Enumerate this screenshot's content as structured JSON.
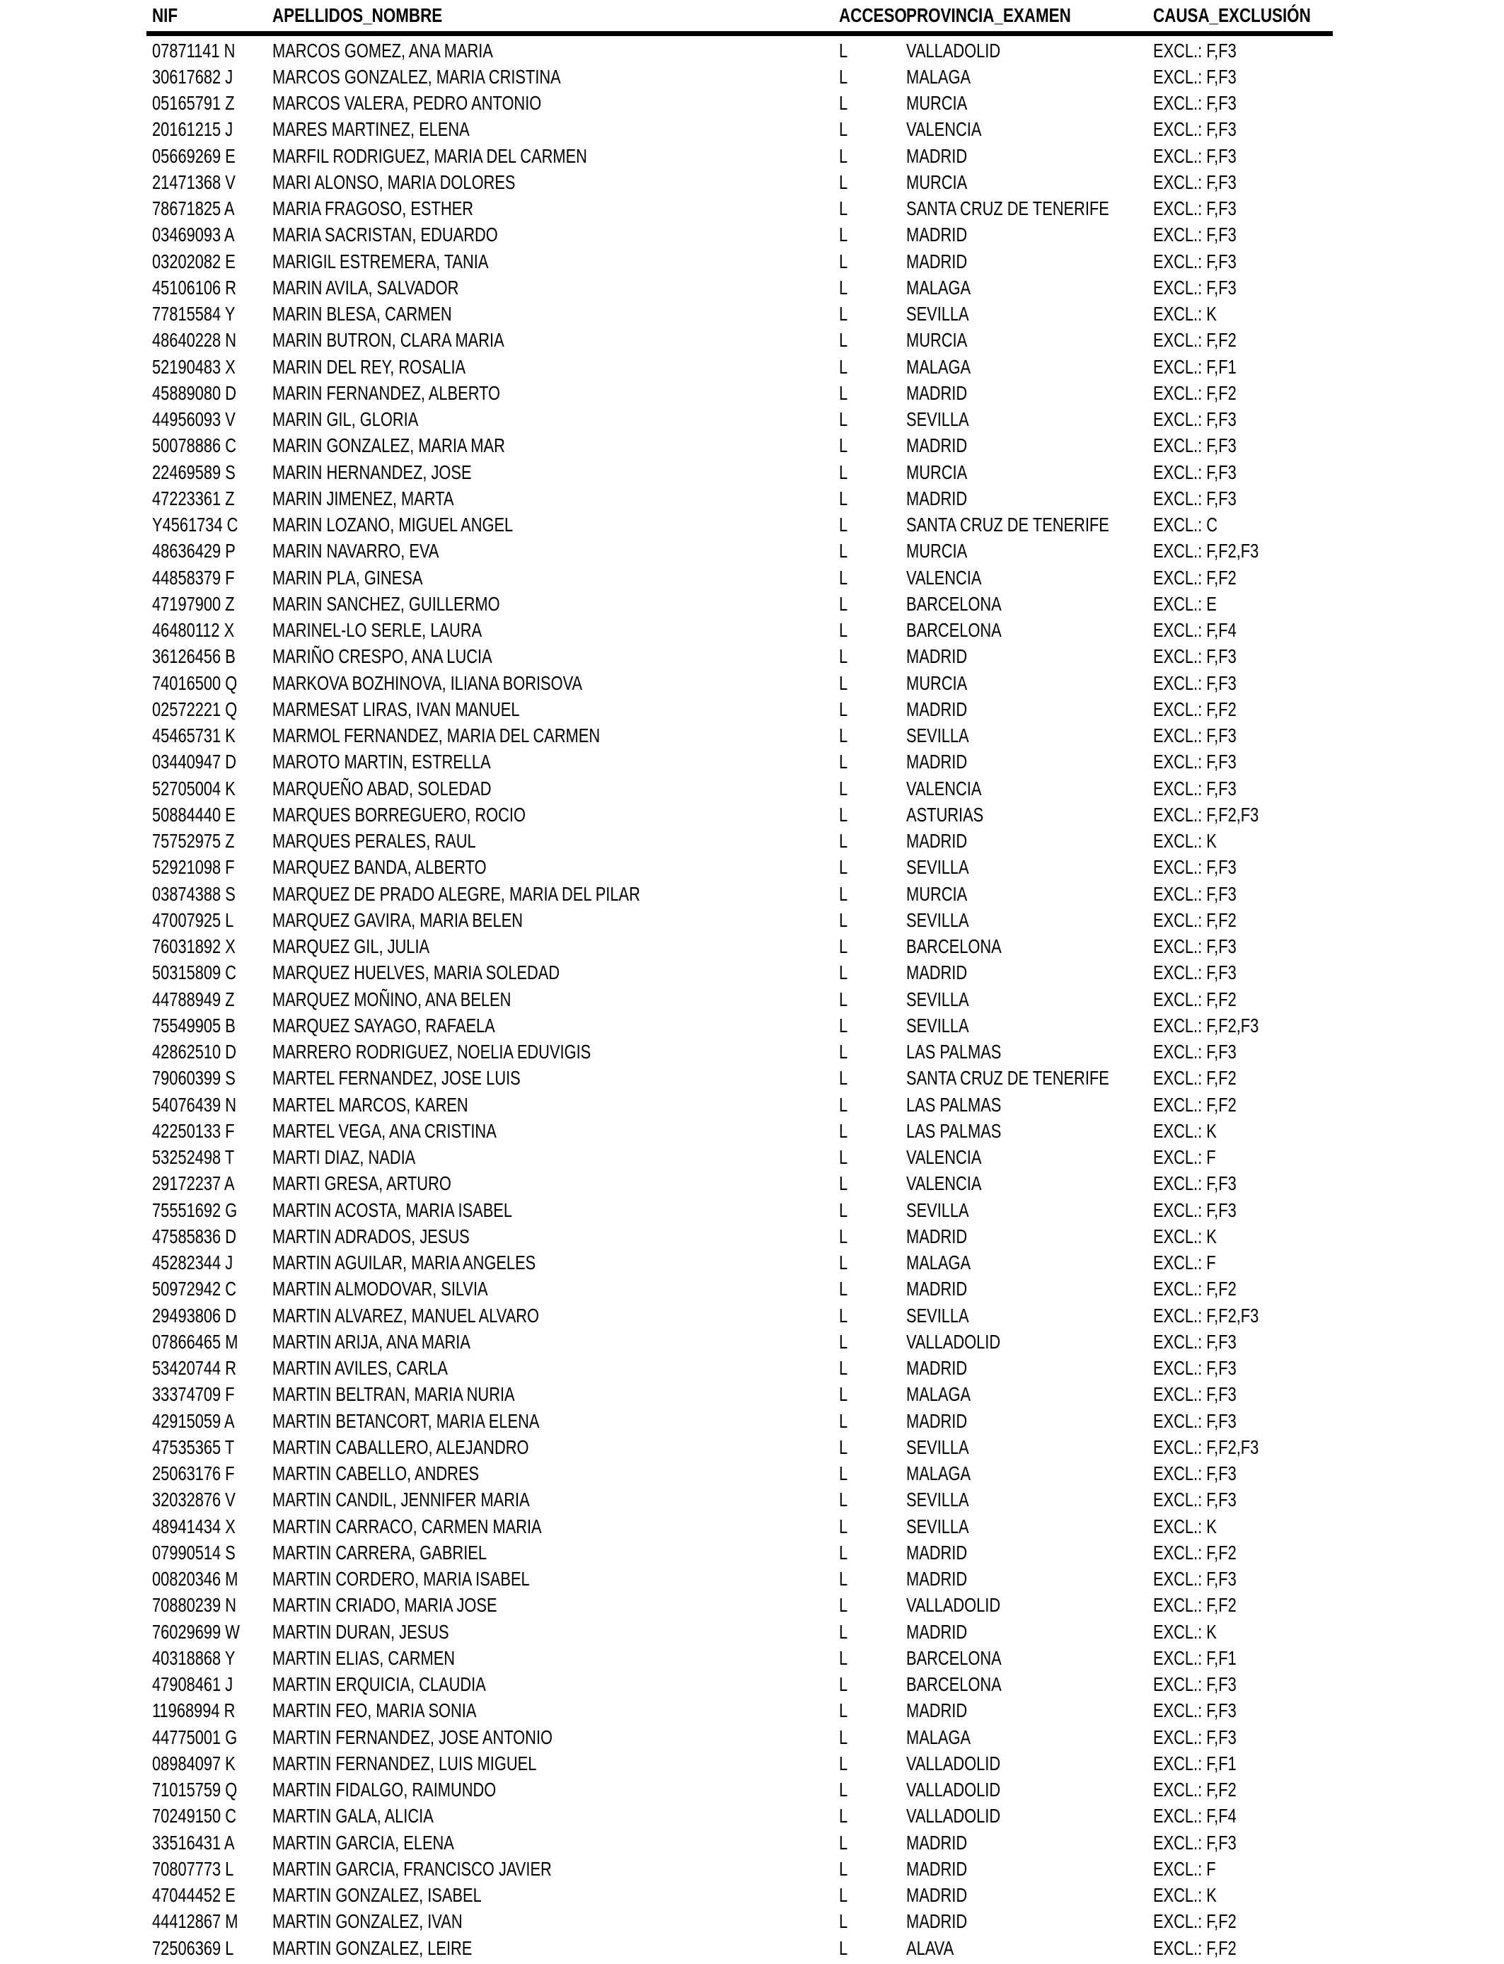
{
  "table": {
    "columns": [
      "NIF",
      "APELLIDOS_NOMBRE",
      "ACCESO",
      "PROVINCIA_EXAMEN",
      "CAUSA_EXCLUSIÓN"
    ],
    "rows": [
      {
        "nif": "07871141 N",
        "nombre": "MARCOS GOMEZ, ANA MARIA",
        "acceso": "L",
        "provincia": "VALLADOLID",
        "causa": "EXCL.: F,F3"
      },
      {
        "nif": "30617682 J",
        "nombre": "MARCOS GONZALEZ, MARIA CRISTINA",
        "acceso": "L",
        "provincia": "MALAGA",
        "causa": "EXCL.: F,F3"
      },
      {
        "nif": "05165791 Z",
        "nombre": "MARCOS VALERA, PEDRO ANTONIO",
        "acceso": "L",
        "provincia": "MURCIA",
        "causa": "EXCL.: F,F3"
      },
      {
        "nif": "20161215 J",
        "nombre": "MARES MARTINEZ, ELENA",
        "acceso": "L",
        "provincia": "VALENCIA",
        "causa": "EXCL.: F,F3"
      },
      {
        "nif": "05669269 E",
        "nombre": "MARFIL RODRIGUEZ, MARIA DEL CARMEN",
        "acceso": "L",
        "provincia": "MADRID",
        "causa": "EXCL.: F,F3"
      },
      {
        "nif": "21471368 V",
        "nombre": "MARI ALONSO, MARIA DOLORES",
        "acceso": "L",
        "provincia": "MURCIA",
        "causa": "EXCL.: F,F3"
      },
      {
        "nif": "78671825 A",
        "nombre": "MARIA FRAGOSO, ESTHER",
        "acceso": "L",
        "provincia": "SANTA CRUZ DE TENERIFE",
        "causa": "EXCL.: F,F3"
      },
      {
        "nif": "03469093 A",
        "nombre": "MARIA SACRISTAN, EDUARDO",
        "acceso": "L",
        "provincia": "MADRID",
        "causa": "EXCL.: F,F3"
      },
      {
        "nif": "03202082 E",
        "nombre": "MARIGIL ESTREMERA, TANIA",
        "acceso": "L",
        "provincia": "MADRID",
        "causa": "EXCL.: F,F3"
      },
      {
        "nif": "45106106 R",
        "nombre": "MARIN AVILA, SALVADOR",
        "acceso": "L",
        "provincia": "MALAGA",
        "causa": "EXCL.: F,F3"
      },
      {
        "nif": "77815584 Y",
        "nombre": "MARIN BLESA, CARMEN",
        "acceso": "L",
        "provincia": "SEVILLA",
        "causa": "EXCL.: K"
      },
      {
        "nif": "48640228 N",
        "nombre": "MARIN BUTRON, CLARA MARIA",
        "acceso": "L",
        "provincia": "MURCIA",
        "causa": "EXCL.: F,F2"
      },
      {
        "nif": "52190483 X",
        "nombre": "MARIN DEL REY, ROSALIA",
        "acceso": "L",
        "provincia": "MALAGA",
        "causa": "EXCL.: F,F1"
      },
      {
        "nif": "45889080 D",
        "nombre": "MARIN FERNANDEZ, ALBERTO",
        "acceso": "L",
        "provincia": "MADRID",
        "causa": "EXCL.: F,F2"
      },
      {
        "nif": "44956093 V",
        "nombre": "MARIN GIL, GLORIA",
        "acceso": "L",
        "provincia": "SEVILLA",
        "causa": "EXCL.: F,F3"
      },
      {
        "nif": "50078886 C",
        "nombre": "MARIN GONZALEZ, MARIA MAR",
        "acceso": "L",
        "provincia": "MADRID",
        "causa": "EXCL.: F,F3"
      },
      {
        "nif": "22469589 S",
        "nombre": "MARIN HERNANDEZ, JOSE",
        "acceso": "L",
        "provincia": "MURCIA",
        "causa": "EXCL.: F,F3"
      },
      {
        "nif": "47223361 Z",
        "nombre": "MARIN JIMENEZ, MARTA",
        "acceso": "L",
        "provincia": "MADRID",
        "causa": "EXCL.: F,F3"
      },
      {
        "nif": "Y4561734 C",
        "nombre": "MARIN LOZANO, MIGUEL ANGEL",
        "acceso": "L",
        "provincia": "SANTA CRUZ DE TENERIFE",
        "causa": "EXCL.: C"
      },
      {
        "nif": "48636429 P",
        "nombre": "MARIN NAVARRO, EVA",
        "acceso": "L",
        "provincia": "MURCIA",
        "causa": "EXCL.: F,F2,F3"
      },
      {
        "nif": "44858379 F",
        "nombre": "MARIN PLA, GINESA",
        "acceso": "L",
        "provincia": "VALENCIA",
        "causa": "EXCL.: F,F2"
      },
      {
        "nif": "47197900 Z",
        "nombre": "MARIN SANCHEZ, GUILLERMO",
        "acceso": "L",
        "provincia": "BARCELONA",
        "causa": "EXCL.: E"
      },
      {
        "nif": "46480112 X",
        "nombre": "MARINEL-LO SERLE, LAURA",
        "acceso": "L",
        "provincia": "BARCELONA",
        "causa": "EXCL.: F,F4"
      },
      {
        "nif": "36126456 B",
        "nombre": "MARIÑO CRESPO, ANA LUCIA",
        "acceso": "L",
        "provincia": "MADRID",
        "causa": "EXCL.: F,F3"
      },
      {
        "nif": "74016500 Q",
        "nombre": "MARKOVA BOZHINOVA, ILIANA BORISOVA",
        "acceso": "L",
        "provincia": "MURCIA",
        "causa": "EXCL.: F,F3"
      },
      {
        "nif": "02572221 Q",
        "nombre": "MARMESAT LIRAS, IVAN MANUEL",
        "acceso": "L",
        "provincia": "MADRID",
        "causa": "EXCL.: F,F2"
      },
      {
        "nif": "45465731 K",
        "nombre": "MARMOL FERNANDEZ, MARIA DEL CARMEN",
        "acceso": "L",
        "provincia": "SEVILLA",
        "causa": "EXCL.: F,F3"
      },
      {
        "nif": "03440947 D",
        "nombre": "MAROTO MARTIN, ESTRELLA",
        "acceso": "L",
        "provincia": "MADRID",
        "causa": "EXCL.: F,F3"
      },
      {
        "nif": "52705004 K",
        "nombre": "MARQUEÑO ABAD, SOLEDAD",
        "acceso": "L",
        "provincia": "VALENCIA",
        "causa": "EXCL.: F,F3"
      },
      {
        "nif": "50884440 E",
        "nombre": "MARQUES BORREGUERO, ROCIO",
        "acceso": "L",
        "provincia": "ASTURIAS",
        "causa": "EXCL.: F,F2,F3"
      },
      {
        "nif": "75752975 Z",
        "nombre": "MARQUES PERALES, RAUL",
        "acceso": "L",
        "provincia": "MADRID",
        "causa": "EXCL.: K"
      },
      {
        "nif": "52921098 F",
        "nombre": "MARQUEZ BANDA, ALBERTO",
        "acceso": "L",
        "provincia": "SEVILLA",
        "causa": "EXCL.: F,F3"
      },
      {
        "nif": "03874388 S",
        "nombre": "MARQUEZ DE PRADO ALEGRE, MARIA DEL PILAR",
        "acceso": "L",
        "provincia": "MURCIA",
        "causa": "EXCL.: F,F3"
      },
      {
        "nif": "47007925 L",
        "nombre": "MARQUEZ GAVIRA, MARIA BELEN",
        "acceso": "L",
        "provincia": "SEVILLA",
        "causa": "EXCL.: F,F2"
      },
      {
        "nif": "76031892 X",
        "nombre": "MARQUEZ GIL, JULIA",
        "acceso": "L",
        "provincia": "BARCELONA",
        "causa": "EXCL.: F,F3"
      },
      {
        "nif": "50315809 C",
        "nombre": "MARQUEZ HUELVES, MARIA SOLEDAD",
        "acceso": "L",
        "provincia": "MADRID",
        "causa": "EXCL.: F,F3"
      },
      {
        "nif": "44788949 Z",
        "nombre": "MARQUEZ MOÑINO, ANA BELEN",
        "acceso": "L",
        "provincia": "SEVILLA",
        "causa": "EXCL.: F,F2"
      },
      {
        "nif": "75549905 B",
        "nombre": "MARQUEZ SAYAGO, RAFAELA",
        "acceso": "L",
        "provincia": "SEVILLA",
        "causa": "EXCL.: F,F2,F3"
      },
      {
        "nif": "42862510 D",
        "nombre": "MARRERO RODRIGUEZ, NOELIA EDUVIGIS",
        "acceso": "L",
        "provincia": "LAS PALMAS",
        "causa": "EXCL.: F,F3"
      },
      {
        "nif": "79060399 S",
        "nombre": "MARTEL FERNANDEZ, JOSE LUIS",
        "acceso": "L",
        "provincia": "SANTA CRUZ DE TENERIFE",
        "causa": "EXCL.: F,F2"
      },
      {
        "nif": "54076439 N",
        "nombre": "MARTEL MARCOS, KAREN",
        "acceso": "L",
        "provincia": "LAS PALMAS",
        "causa": "EXCL.: F,F2"
      },
      {
        "nif": "42250133 F",
        "nombre": "MARTEL VEGA, ANA CRISTINA",
        "acceso": "L",
        "provincia": "LAS PALMAS",
        "causa": "EXCL.: K"
      },
      {
        "nif": "53252498 T",
        "nombre": "MARTI DIAZ, NADIA",
        "acceso": "L",
        "provincia": "VALENCIA",
        "causa": "EXCL.: F"
      },
      {
        "nif": "29172237 A",
        "nombre": "MARTI GRESA, ARTURO",
        "acceso": "L",
        "provincia": "VALENCIA",
        "causa": "EXCL.: F,F3"
      },
      {
        "nif": "75551692 G",
        "nombre": "MARTIN ACOSTA, MARIA ISABEL",
        "acceso": "L",
        "provincia": "SEVILLA",
        "causa": "EXCL.: F,F3"
      },
      {
        "nif": "47585836 D",
        "nombre": "MARTIN ADRADOS, JESUS",
        "acceso": "L",
        "provincia": "MADRID",
        "causa": "EXCL.: K"
      },
      {
        "nif": "45282344 J",
        "nombre": "MARTIN AGUILAR, MARIA ANGELES",
        "acceso": "L",
        "provincia": "MALAGA",
        "causa": "EXCL.: F"
      },
      {
        "nif": "50972942 C",
        "nombre": "MARTIN ALMODOVAR, SILVIA",
        "acceso": "L",
        "provincia": "MADRID",
        "causa": "EXCL.: F,F2"
      },
      {
        "nif": "29493806 D",
        "nombre": "MARTIN ALVAREZ, MANUEL ALVARO",
        "acceso": "L",
        "provincia": "SEVILLA",
        "causa": "EXCL.: F,F2,F3"
      },
      {
        "nif": "07866465 M",
        "nombre": "MARTIN ARIJA, ANA MARIA",
        "acceso": "L",
        "provincia": "VALLADOLID",
        "causa": "EXCL.: F,F3"
      },
      {
        "nif": "53420744 R",
        "nombre": "MARTIN AVILES, CARLA",
        "acceso": "L",
        "provincia": "MADRID",
        "causa": "EXCL.: F,F3"
      },
      {
        "nif": "33374709 F",
        "nombre": "MARTIN BELTRAN, MARIA NURIA",
        "acceso": "L",
        "provincia": "MALAGA",
        "causa": "EXCL.: F,F3"
      },
      {
        "nif": "42915059 A",
        "nombre": "MARTIN BETANCORT, MARIA ELENA",
        "acceso": "L",
        "provincia": "MADRID",
        "causa": "EXCL.: F,F3"
      },
      {
        "nif": "47535365 T",
        "nombre": "MARTIN CABALLERO, ALEJANDRO",
        "acceso": "L",
        "provincia": "SEVILLA",
        "causa": "EXCL.: F,F2,F3"
      },
      {
        "nif": "25063176 F",
        "nombre": "MARTIN CABELLO, ANDRES",
        "acceso": "L",
        "provincia": "MALAGA",
        "causa": "EXCL.: F,F3"
      },
      {
        "nif": "32032876 V",
        "nombre": "MARTIN CANDIL, JENNIFER MARIA",
        "acceso": "L",
        "provincia": "SEVILLA",
        "causa": "EXCL.: F,F3"
      },
      {
        "nif": "48941434 X",
        "nombre": "MARTIN CARRACO, CARMEN MARIA",
        "acceso": "L",
        "provincia": "SEVILLA",
        "causa": "EXCL.: K"
      },
      {
        "nif": "07990514 S",
        "nombre": "MARTIN CARRERA, GABRIEL",
        "acceso": "L",
        "provincia": "MADRID",
        "causa": "EXCL.: F,F2"
      },
      {
        "nif": "00820346 M",
        "nombre": "MARTIN CORDERO, MARIA ISABEL",
        "acceso": "L",
        "provincia": "MADRID",
        "causa": "EXCL.: F,F3"
      },
      {
        "nif": "70880239 N",
        "nombre": "MARTIN CRIADO, MARIA JOSE",
        "acceso": "L",
        "provincia": "VALLADOLID",
        "causa": "EXCL.: F,F2"
      },
      {
        "nif": "76029699 W",
        "nombre": "MARTIN DURAN, JESUS",
        "acceso": "L",
        "provincia": "MADRID",
        "causa": "EXCL.: K"
      },
      {
        "nif": "40318868 Y",
        "nombre": "MARTIN ELIAS, CARMEN",
        "acceso": "L",
        "provincia": "BARCELONA",
        "causa": "EXCL.: F,F1"
      },
      {
        "nif": "47908461 J",
        "nombre": "MARTIN ERQUICIA, CLAUDIA",
        "acceso": "L",
        "provincia": "BARCELONA",
        "causa": "EXCL.: F,F3"
      },
      {
        "nif": "11968994 R",
        "nombre": "MARTIN FEO, MARIA SONIA",
        "acceso": "L",
        "provincia": "MADRID",
        "causa": "EXCL.: F,F3"
      },
      {
        "nif": "44775001 G",
        "nombre": "MARTIN FERNANDEZ, JOSE ANTONIO",
        "acceso": "L",
        "provincia": "MALAGA",
        "causa": "EXCL.: F,F3"
      },
      {
        "nif": "08984097 K",
        "nombre": "MARTIN FERNANDEZ, LUIS MIGUEL",
        "acceso": "L",
        "provincia": "VALLADOLID",
        "causa": "EXCL.: F,F1"
      },
      {
        "nif": "71015759 Q",
        "nombre": "MARTIN FIDALGO, RAIMUNDO",
        "acceso": "L",
        "provincia": "VALLADOLID",
        "causa": "EXCL.: F,F2"
      },
      {
        "nif": "70249150 C",
        "nombre": "MARTIN GALA, ALICIA",
        "acceso": "L",
        "provincia": "VALLADOLID",
        "causa": "EXCL.: F,F4"
      },
      {
        "nif": "33516431 A",
        "nombre": "MARTIN GARCIA, ELENA",
        "acceso": "L",
        "provincia": "MADRID",
        "causa": "EXCL.: F,F3"
      },
      {
        "nif": "70807773 L",
        "nombre": "MARTIN GARCIA, FRANCISCO JAVIER",
        "acceso": "L",
        "provincia": "MADRID",
        "causa": "EXCL.: F"
      },
      {
        "nif": "47044452 E",
        "nombre": "MARTIN GONZALEZ, ISABEL",
        "acceso": "L",
        "provincia": "MADRID",
        "causa": "EXCL.: K"
      },
      {
        "nif": "44412867 M",
        "nombre": "MARTIN GONZALEZ, IVAN",
        "acceso": "L",
        "provincia": "MADRID",
        "causa": "EXCL.: F,F2"
      },
      {
        "nif": "72506369 L",
        "nombre": "MARTIN GONZALEZ, LEIRE",
        "acceso": "L",
        "provincia": "ALAVA",
        "causa": "EXCL.: F,F2"
      }
    ]
  }
}
